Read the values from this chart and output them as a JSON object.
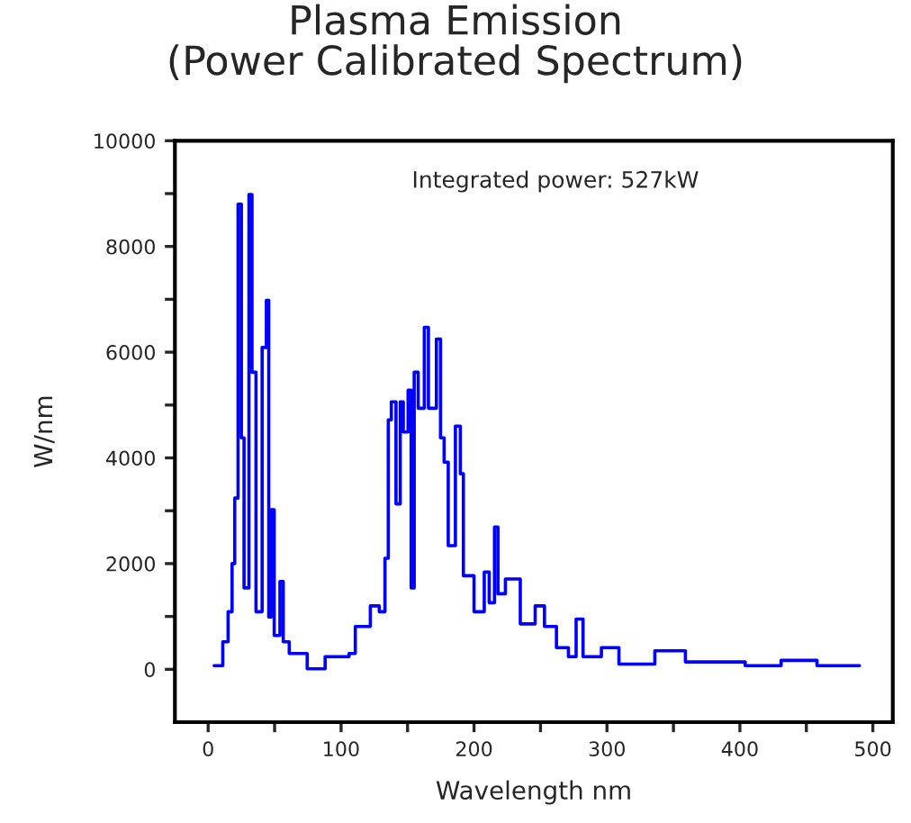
{
  "chart_data": {
    "type": "step",
    "title": "Plasma Emission\n(Power Calibrated Spectrum)",
    "xlabel": "Wavelength nm",
    "ylabel": "W/nm",
    "annotations": [
      "Integrated power: 527kW"
    ],
    "series": [
      {
        "color": "#0000ff",
        "x": [
          4.5,
          11,
          15,
          18,
          20,
          22.5,
          25,
          27,
          30.7,
          33,
          36,
          40.6,
          43.8,
          45.6,
          47.4,
          49.7,
          54,
          56.5,
          61,
          74.5,
          88,
          106,
          110.7,
          122,
          128.7,
          133,
          135.5,
          137.8,
          141.3,
          144.5,
          146.8,
          150.4,
          152.7,
          155,
          158,
          162.6,
          165.7,
          171.7,
          174.8,
          177.5,
          180.6,
          186,
          189.7,
          192,
          200,
          207.7,
          211.4,
          215.4,
          218,
          223.6,
          234.8,
          246,
          253,
          262,
          271,
          276.8,
          282,
          295.8,
          309,
          336,
          359,
          386,
          404,
          431,
          458,
          490
        ],
        "values": [
          70,
          520,
          1090,
          2000,
          3240,
          8800,
          4380,
          1540,
          8980,
          5620,
          1090,
          6090,
          6980,
          990,
          3020,
          640,
          1660,
          520,
          300,
          10,
          240,
          300,
          810,
          1200,
          1090,
          2100,
          4720,
          5060,
          3130,
          5060,
          4490,
          5280,
          1540,
          5620,
          4940,
          6470,
          4940,
          6250,
          4380,
          3920,
          2340,
          4600,
          3700,
          1770,
          1090,
          1840,
          1260,
          2690,
          1430,
          1710,
          860,
          1200,
          810,
          410,
          240,
          950,
          240,
          410,
          100,
          350,
          140,
          140,
          70,
          170,
          70,
          70
        ]
      }
    ],
    "xlim": [
      -25,
      515
    ],
    "ylim": [
      -1000,
      10000
    ],
    "xticks": [
      0,
      {
        "value": 50,
        "label": null
      },
      100,
      {
        "value": 150,
        "label": null
      },
      200,
      {
        "value": 250,
        "label": null
      },
      300,
      {
        "value": 350,
        "label": null
      },
      400,
      {
        "value": 450,
        "label": null
      },
      500
    ],
    "yticks": [
      0,
      {
        "value": 1000,
        "label": null
      },
      2000,
      {
        "value": 3000,
        "label": null
      },
      4000,
      {
        "value": 5000,
        "label": null
      },
      6000,
      {
        "value": 7000,
        "label": null
      },
      8000,
      {
        "value": 9000,
        "label": null
      },
      10000
    ],
    "grid": false,
    "marker": "none",
    "line_style": "solid"
  }
}
